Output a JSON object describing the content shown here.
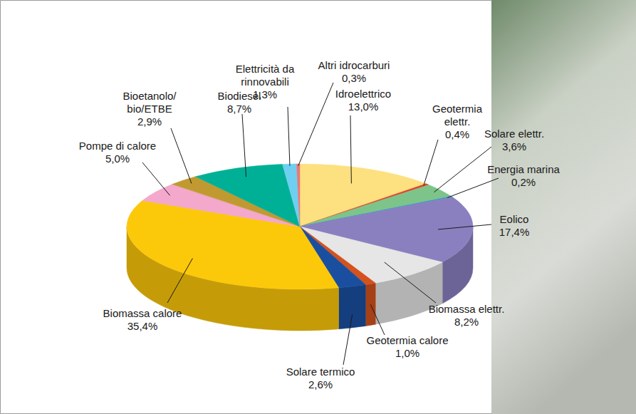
{
  "chart_data": {
    "type": "pie",
    "categories": [
      "Idroelettrico",
      "Geotermia\nelettr.",
      "Solare elettr.",
      "Energia marina",
      "Eolico",
      "Biomassa elettr.",
      "Geotermia calore",
      "Solare termico",
      "Biomassa calore",
      "Pompe di calore",
      "Bioetanolo/\nbio/ETBE",
      "Biodiesel",
      "Elettricità da\nrinnovabili",
      "Altri idrocarburi"
    ],
    "values": [
      13.0,
      0.4,
      3.6,
      0.2,
      17.4,
      8.2,
      1.0,
      2.6,
      35.4,
      5.0,
      2.9,
      8.7,
      1.3,
      0.3
    ],
    "value_labels": [
      "13,0%",
      "0,4%",
      "3,6%",
      "0,2%",
      "17,4%",
      "8,2%",
      "1,0%",
      "2,6%",
      "35,4%",
      "5,0%",
      "2,9%",
      "8,7%",
      "1,3%",
      "0,3%"
    ],
    "colors": [
      "#fde07f",
      "#e0452a",
      "#7dc48a",
      "#2a8fd0",
      "#8a80c0",
      "#e6e6e6",
      "#d4521e",
      "#1a4fa0",
      "#fcc80a",
      "#f3a8cc",
      "#c09a30",
      "#00b096",
      "#6fcff0",
      "#e87878"
    ],
    "data_labels": true
  }
}
